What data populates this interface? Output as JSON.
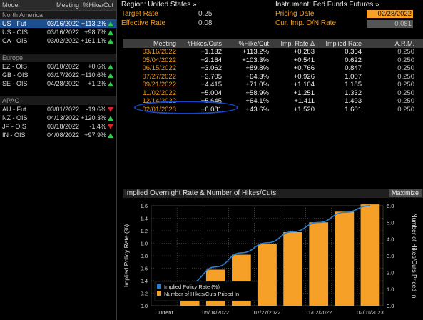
{
  "left_panel": {
    "headers": {
      "model": "Model",
      "meeting": "Meeting",
      "hike": "%Hike/Cut"
    },
    "groups": [
      {
        "region": "North America",
        "rows": [
          {
            "model": "US - Fut",
            "meeting": "03/16/2022",
            "hike": "+113.2%",
            "dir": "up",
            "selected": true
          },
          {
            "model": "US - OIS",
            "meeting": "03/16/2022",
            "hike": "+98.7%",
            "dir": "up"
          },
          {
            "model": "CA - OIS",
            "meeting": "03/02/2022",
            "hike": "+161.1%",
            "dir": "up"
          }
        ]
      },
      {
        "region": "Europe",
        "rows": [
          {
            "model": "EZ - OIS",
            "meeting": "03/10/2022",
            "hike": "+0.6%",
            "dir": "up"
          },
          {
            "model": "GB - OIS",
            "meeting": "03/17/2022",
            "hike": "+110.6%",
            "dir": "up"
          },
          {
            "model": "SE - OIS",
            "meeting": "04/28/2022",
            "hike": "+1.2%",
            "dir": "up"
          }
        ]
      },
      {
        "region": "APAC",
        "rows": [
          {
            "model": "AU - Fut",
            "meeting": "03/01/2022",
            "hike": "-19.6%",
            "dir": "down"
          },
          {
            "model": "NZ - OIS",
            "meeting": "04/13/2022",
            "hike": "+120.3%",
            "dir": "up"
          },
          {
            "model": "JP - OIS",
            "meeting": "03/18/2022",
            "hike": "-1.4%",
            "dir": "down"
          },
          {
            "model": "IN - OIS",
            "meeting": "04/08/2022",
            "hike": "+97.9%",
            "dir": "up"
          }
        ]
      }
    ]
  },
  "header": {
    "region_label": "Region: United States »",
    "target_rate_label": "Target Rate",
    "target_rate": "0.25",
    "effective_rate_label": "Effective Rate",
    "effective_rate": "0.08",
    "instrument_label": "Instrument: Fed Funds Futures »",
    "pricing_date_label": "Pricing Date",
    "pricing_date": "02/28/2022",
    "imp_rate_label": "Cur. Imp. O/N Rate",
    "imp_rate": "0.081"
  },
  "table": {
    "headers": {
      "meeting": "Meeting",
      "hikes": "#Hikes/Cuts",
      "pct": "%Hike/Cut",
      "imp": "Imp. Rate Δ",
      "rate": "Implied Rate",
      "arm": "A.R.M."
    },
    "rows": [
      {
        "meeting": "03/16/2022",
        "hikes": "+1.132",
        "pct": "+113.2%",
        "imp": "+0.283",
        "rate": "0.364",
        "arm": "0.250"
      },
      {
        "meeting": "05/04/2022",
        "hikes": "+2.164",
        "pct": "+103.3%",
        "imp": "+0.541",
        "rate": "0.622",
        "arm": "0.250"
      },
      {
        "meeting": "06/15/2022",
        "hikes": "+3.062",
        "pct": "+89.8%",
        "imp": "+0.766",
        "rate": "0.847",
        "arm": "0.250"
      },
      {
        "meeting": "07/27/2022",
        "hikes": "+3.705",
        "pct": "+64.3%",
        "imp": "+0.926",
        "rate": "1.007",
        "arm": "0.250"
      },
      {
        "meeting": "09/21/2022",
        "hikes": "+4.415",
        "pct": "+71.0%",
        "imp": "+1.104",
        "rate": "1.185",
        "arm": "0.250"
      },
      {
        "meeting": "11/02/2022",
        "hikes": "+5.004",
        "pct": "+58.9%",
        "imp": "+1.251",
        "rate": "1.332",
        "arm": "0.250"
      },
      {
        "meeting": "12/14/2022",
        "hikes": "+5.645",
        "pct": "+64.1%",
        "imp": "+1.411",
        "rate": "1.493",
        "arm": "0.250"
      },
      {
        "meeting": "02/01/2023",
        "hikes": "+6.081",
        "pct": "+43.6%",
        "imp": "+1.520",
        "rate": "1.601",
        "arm": "0.250"
      }
    ]
  },
  "chart_panel": {
    "title": "Implied Overnight Rate & Number of Hikes/Cuts",
    "maximize_label": "Maximize"
  },
  "colors": {
    "accent_orange": "#f39a1a",
    "bar_orange": "#f6a028",
    "line_blue": "#2a7fd4",
    "selected_row": "#1c4f8f",
    "up_green": "#2ec84b",
    "down_red": "#e0212b"
  },
  "chart_data": {
    "type": "bar",
    "categories": [
      "Current",
      "03/16/2022",
      "05/04/2022",
      "06/15/2022",
      "07/27/2022",
      "09/21/2022",
      "11/02/2022",
      "12/14/2022",
      "02/01/2023"
    ],
    "x_tick_labels": [
      "Current",
      "05/04/2022",
      "07/27/2022",
      "11/02/2022",
      "02/01/2023"
    ],
    "series": [
      {
        "name": "Implied Policy Rate (%)",
        "type": "line",
        "axis": "left",
        "values": [
          0.081,
          0.364,
          0.622,
          0.847,
          1.007,
          1.185,
          1.332,
          1.493,
          1.601
        ]
      },
      {
        "name": "Number of Hikes/Cuts Priced In",
        "type": "bar",
        "axis": "right",
        "values": [
          0,
          1.132,
          2.164,
          3.062,
          3.705,
          4.415,
          5.004,
          5.645,
          6.081
        ]
      }
    ],
    "ylabel": "Implied Policy Rate (%)",
    "y2label": "Number of Hikes/Cuts Priced In",
    "ylim": [
      0,
      1.6
    ],
    "y2lim": [
      0,
      6.0
    ],
    "yticks": [
      "0.0",
      "0.2",
      "0.4",
      "0.6",
      "0.8",
      "1.0",
      "1.2",
      "1.4",
      "1.6"
    ],
    "y2ticks": [
      "0.0",
      "1.0",
      "2.0",
      "3.0",
      "4.0",
      "5.0",
      "6.0"
    ],
    "grid": true,
    "legend_position": "bottom-left"
  }
}
